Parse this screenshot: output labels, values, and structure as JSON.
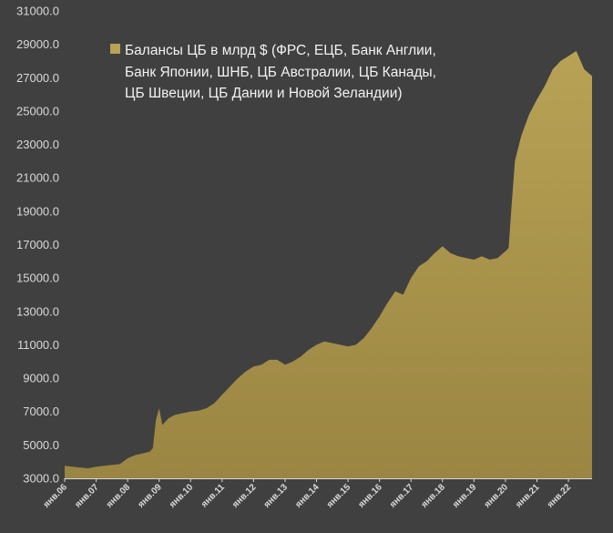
{
  "chart_data": {
    "type": "area",
    "legend_lines": [
      "Балансы ЦБ в млрд $ (ФРС, ЕЦБ, Банк Англии,",
      "Банк Японии, ШНБ, ЦБ Австралии, ЦБ Канады,",
      "ЦБ Швеции, ЦБ Дании и Новой Зеландии)"
    ],
    "legend_position": "top-left",
    "ylim": [
      3000,
      31000
    ],
    "yticks": [
      3000,
      5000,
      7000,
      9000,
      11000,
      13000,
      15000,
      17000,
      19000,
      21000,
      23000,
      25000,
      27000,
      29000,
      31000
    ],
    "ytick_labels": [
      "3000.0",
      "5000.0",
      "7000.0",
      "9000.0",
      "11000.0",
      "13000.0",
      "15000.0",
      "17000.0",
      "19000.0",
      "21000.0",
      "23000.0",
      "25000.0",
      "27000.0",
      "29000.0",
      "31000.0"
    ],
    "xticks": [
      "янв.06",
      "янв.07",
      "янв.08",
      "янв.09",
      "янв.10",
      "янв.11",
      "янв.12",
      "янв.13",
      "янв.14",
      "янв.15",
      "янв.16",
      "янв.17",
      "янв.18",
      "янв.19",
      "янв.20",
      "янв.21",
      "янв.22"
    ],
    "xlim": [
      2006.0,
      2022.75
    ],
    "grid": false,
    "colors": {
      "fill": "#9a8542",
      "fill_light": "#bfa95a",
      "background": "#404040",
      "text": "#d9d9d9",
      "axis": "#d9d9d9"
    },
    "series": [
      {
        "name": "Балансы ЦБ в млрд $ (ФРС, ЕЦБ, Банк Англии, Банк Японии, ШНБ, ЦБ Австралии, ЦБ Канады, ЦБ Швеции, ЦБ Дании и Новой Зеландии)",
        "x": [
          2006.0,
          2006.25,
          2006.5,
          2006.75,
          2007.0,
          2007.25,
          2007.5,
          2007.75,
          2008.0,
          2008.25,
          2008.5,
          2008.7,
          2008.8,
          2008.9,
          2009.0,
          2009.1,
          2009.2,
          2009.3,
          2009.5,
          2009.75,
          2010.0,
          2010.25,
          2010.5,
          2010.75,
          2011.0,
          2011.25,
          2011.5,
          2011.75,
          2012.0,
          2012.25,
          2012.5,
          2012.75,
          2013.0,
          2013.25,
          2013.5,
          2013.75,
          2014.0,
          2014.25,
          2014.5,
          2014.75,
          2015.0,
          2015.25,
          2015.5,
          2015.75,
          2016.0,
          2016.25,
          2016.5,
          2016.75,
          2017.0,
          2017.25,
          2017.5,
          2017.75,
          2018.0,
          2018.25,
          2018.5,
          2018.75,
          2019.0,
          2019.25,
          2019.5,
          2019.75,
          2020.0,
          2020.1,
          2020.2,
          2020.3,
          2020.5,
          2020.75,
          2021.0,
          2021.25,
          2021.5,
          2021.75,
          2022.0,
          2022.25,
          2022.5,
          2022.75
        ],
        "values": [
          3750,
          3700,
          3650,
          3600,
          3700,
          3750,
          3800,
          3850,
          4200,
          4400,
          4500,
          4600,
          4800,
          6500,
          7200,
          6200,
          6400,
          6600,
          6800,
          6900,
          7000,
          7050,
          7200,
          7500,
          8000,
          8500,
          9000,
          9400,
          9700,
          9800,
          10100,
          10100,
          9800,
          10000,
          10300,
          10700,
          11000,
          11200,
          11100,
          11000,
          10900,
          11000,
          11400,
          12000,
          12700,
          13500,
          14200,
          14000,
          15000,
          15700,
          16000,
          16500,
          16900,
          16500,
          16300,
          16200,
          16100,
          16300,
          16100,
          16200,
          16600,
          16800,
          19500,
          22000,
          23500,
          24800,
          25700,
          26500,
          27500,
          28000,
          28300,
          28600,
          27500,
          27100
        ]
      }
    ]
  }
}
